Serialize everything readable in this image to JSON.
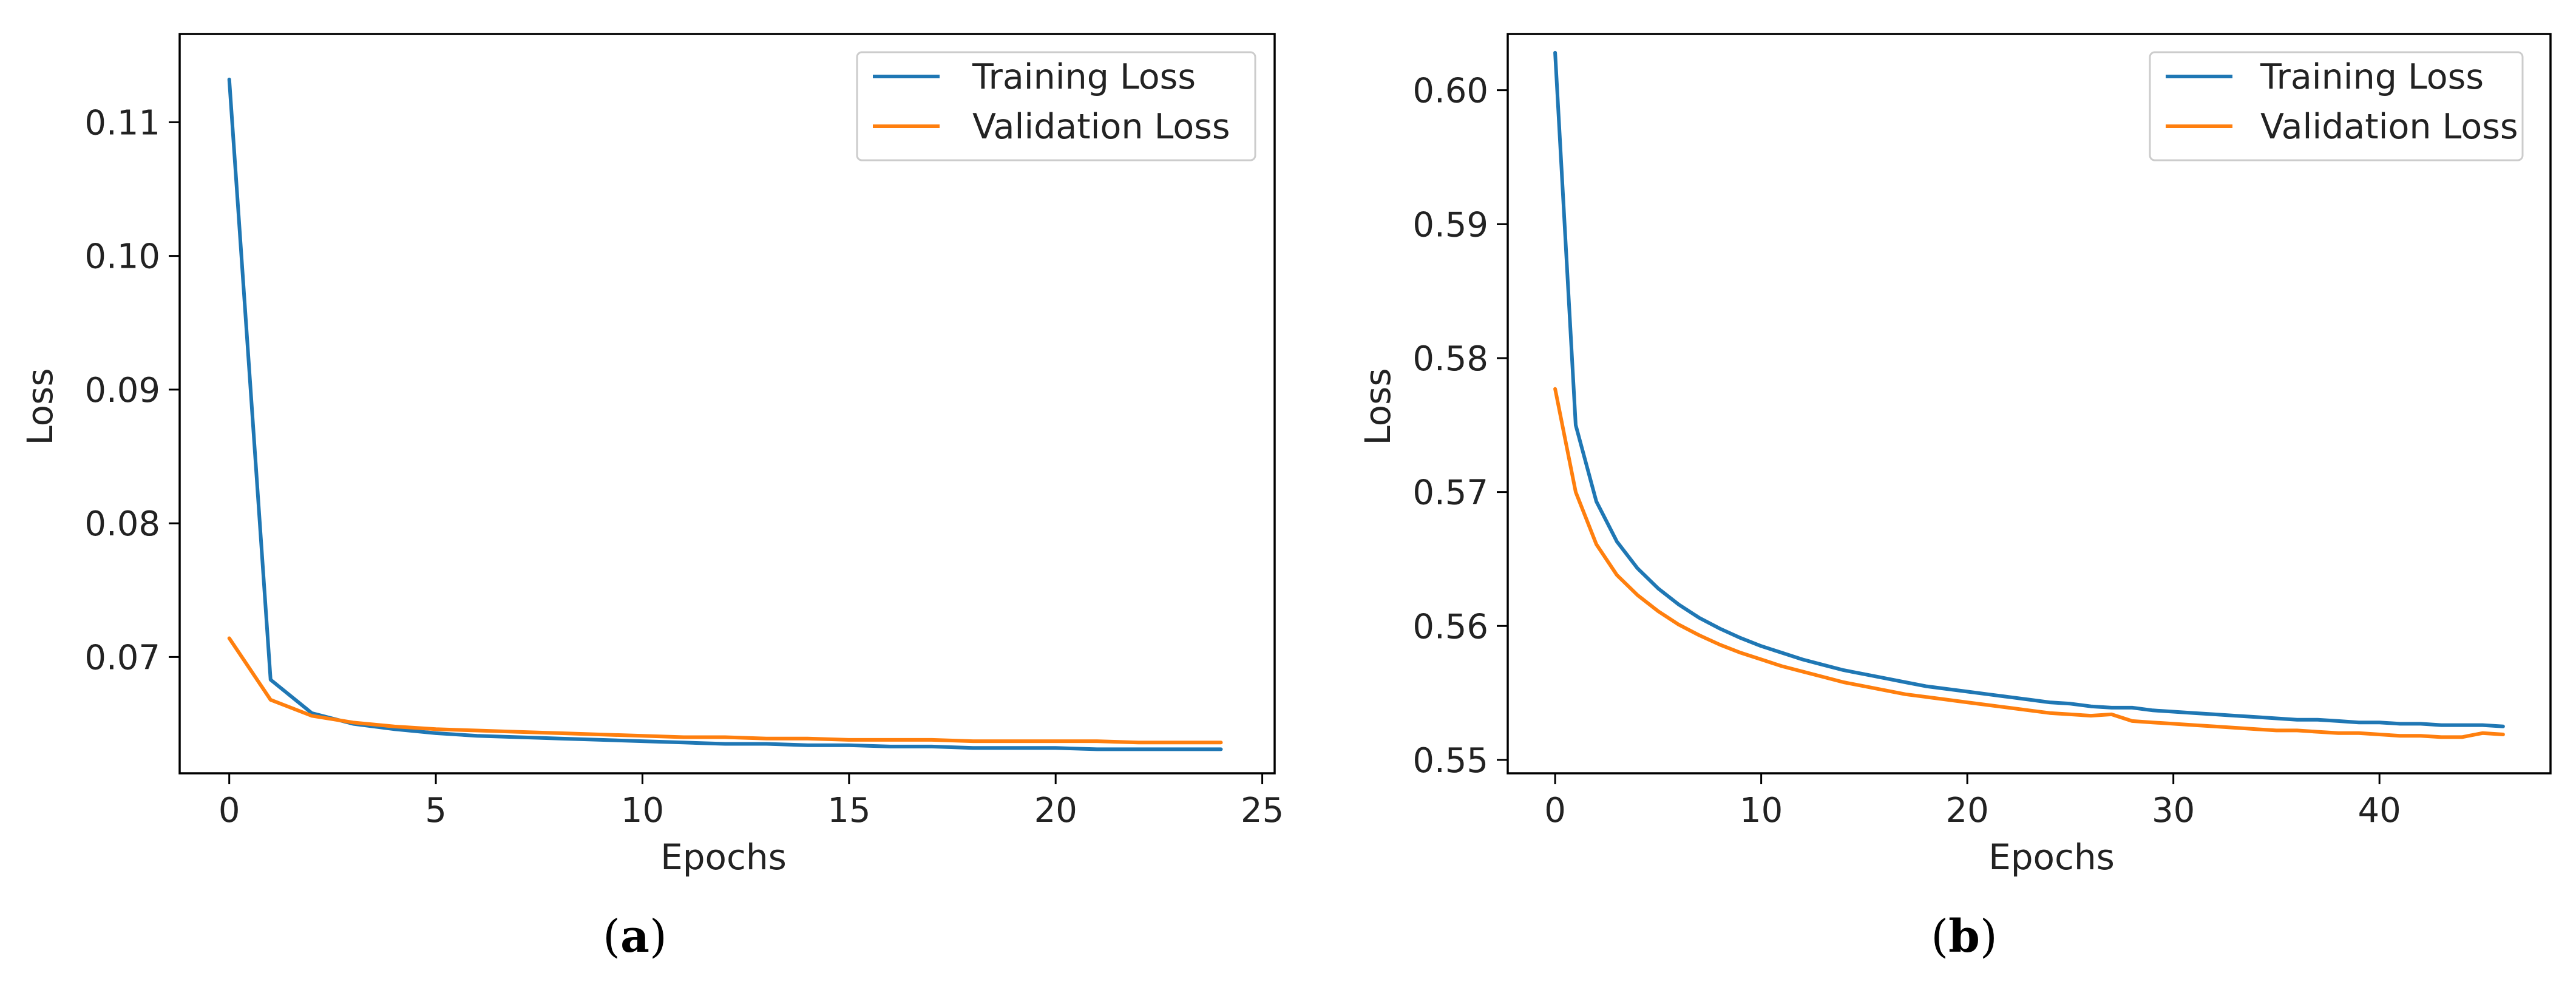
{
  "chart_data": [
    {
      "type": "line",
      "caption_letter": "a",
      "xlabel": "Epochs",
      "ylabel": "Loss",
      "xlim": [
        -1.2,
        25.3
      ],
      "ylim": [
        0.0613,
        0.1166
      ],
      "xticks": [
        0,
        5,
        10,
        15,
        20,
        25
      ],
      "xtick_labels": [
        "0",
        "5",
        "10",
        "15",
        "20",
        "25"
      ],
      "yticks": [
        0.07,
        0.08,
        0.09,
        0.1,
        0.11
      ],
      "ytick_labels": [
        "0.07",
        "0.08",
        "0.09",
        "0.10",
        "0.11"
      ],
      "legend_position": "top-right",
      "x": [
        0,
        1,
        2,
        3,
        4,
        5,
        6,
        7,
        8,
        9,
        10,
        11,
        12,
        13,
        14,
        15,
        16,
        17,
        18,
        19,
        20,
        21,
        22,
        23,
        24
      ],
      "series": [
        {
          "name": "Training Loss",
          "color": "#1f77b4",
          "values": [
            0.1132,
            0.0683,
            0.0658,
            0.065,
            0.0646,
            0.0643,
            0.0641,
            0.064,
            0.0639,
            0.0638,
            0.0637,
            0.0636,
            0.0635,
            0.0635,
            0.0634,
            0.0634,
            0.0633,
            0.0633,
            0.0632,
            0.0632,
            0.0632,
            0.0631,
            0.0631,
            0.0631,
            0.0631
          ]
        },
        {
          "name": "Validation Loss",
          "color": "#ff7f0e",
          "values": [
            0.0714,
            0.0668,
            0.0656,
            0.0651,
            0.0648,
            0.0646,
            0.0645,
            0.0644,
            0.0643,
            0.0642,
            0.0641,
            0.064,
            0.064,
            0.0639,
            0.0639,
            0.0638,
            0.0638,
            0.0638,
            0.0637,
            0.0637,
            0.0637,
            0.0637,
            0.0636,
            0.0636,
            0.0636
          ]
        }
      ]
    },
    {
      "type": "line",
      "caption_letter": "b",
      "xlabel": "Epochs",
      "ylabel": "Loss",
      "xlim": [
        -2.3,
        48.3
      ],
      "ylim": [
        0.549,
        0.6042
      ],
      "xticks": [
        0,
        10,
        20,
        30,
        40
      ],
      "xtick_labels": [
        "0",
        "10",
        "20",
        "30",
        "40"
      ],
      "yticks": [
        0.55,
        0.56,
        0.57,
        0.58,
        0.59,
        0.6
      ],
      "ytick_labels": [
        "0.55",
        "0.56",
        "0.57",
        "0.58",
        "0.59",
        "0.60"
      ],
      "legend_position": "top-right",
      "x": [
        0,
        1,
        2,
        3,
        4,
        5,
        6,
        7,
        8,
        9,
        10,
        11,
        12,
        13,
        14,
        15,
        16,
        17,
        18,
        19,
        20,
        21,
        22,
        23,
        24,
        25,
        26,
        27,
        28,
        29,
        30,
        31,
        32,
        33,
        34,
        35,
        36,
        37,
        38,
        39,
        40,
        41,
        42,
        43,
        44,
        45,
        46
      ],
      "series": [
        {
          "name": "Training Loss",
          "color": "#1f77b4",
          "values": [
            0.6028,
            0.575,
            0.5693,
            0.5663,
            0.5643,
            0.5628,
            0.5616,
            0.5606,
            0.5598,
            0.5591,
            0.5585,
            0.558,
            0.5575,
            0.5571,
            0.5567,
            0.5564,
            0.5561,
            0.5558,
            0.5555,
            0.5553,
            0.5551,
            0.5549,
            0.5547,
            0.5545,
            0.5543,
            0.5542,
            0.554,
            0.5539,
            0.5539,
            0.5537,
            0.5536,
            0.5535,
            0.5534,
            0.5533,
            0.5532,
            0.5531,
            0.553,
            0.553,
            0.5529,
            0.5528,
            0.5528,
            0.5527,
            0.5527,
            0.5526,
            0.5526,
            0.5526,
            0.5525
          ]
        },
        {
          "name": "Validation Loss",
          "color": "#ff7f0e",
          "values": [
            0.5777,
            0.57,
            0.5661,
            0.5638,
            0.5623,
            0.5611,
            0.5601,
            0.5593,
            0.5586,
            0.558,
            0.5575,
            0.557,
            0.5566,
            0.5562,
            0.5558,
            0.5555,
            0.5552,
            0.5549,
            0.5547,
            0.5545,
            0.5543,
            0.5541,
            0.5539,
            0.5537,
            0.5535,
            0.5534,
            0.5533,
            0.5534,
            0.5529,
            0.5528,
            0.5527,
            0.5526,
            0.5525,
            0.5524,
            0.5523,
            0.5522,
            0.5522,
            0.5521,
            0.552,
            0.552,
            0.5519,
            0.5518,
            0.5518,
            0.5517,
            0.5517,
            0.552,
            0.5519
          ]
        }
      ]
    }
  ]
}
